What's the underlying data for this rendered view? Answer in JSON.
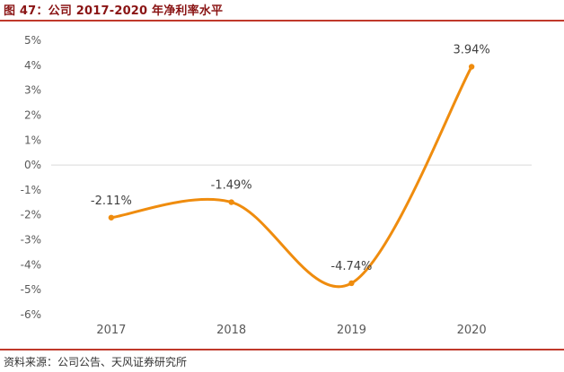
{
  "figure": {
    "title": "图 47：公司 2017-2020 年净利率水平",
    "source": "资料来源：公司公告、天风证券研究所"
  },
  "colors": {
    "accent_rule": "#c0392b",
    "title_text": "#8a1414",
    "series_line": "#ef8c0e",
    "axis_text": "#595959",
    "zero_line": "#d9d9d9"
  },
  "chart_data": {
    "type": "line",
    "categories": [
      "2017",
      "2018",
      "2019",
      "2020"
    ],
    "series": [
      {
        "values": [
          -2.11,
          -1.49,
          -4.74,
          3.94
        ]
      }
    ],
    "data_labels": [
      "-2.11%",
      "-1.49%",
      "-4.74%",
      "3.94%"
    ],
    "y_ticks": [
      "5%",
      "4%",
      "3%",
      "2%",
      "1%",
      "0%",
      "-1%",
      "-2%",
      "-3%",
      "-4%",
      "-5%",
      "-6%"
    ],
    "y_tick_values": [
      5,
      4,
      3,
      2,
      1,
      0,
      -1,
      -2,
      -3,
      -4,
      -5,
      -6
    ],
    "ylim": [
      -6,
      5
    ],
    "smooth": true,
    "grid": false,
    "legend": "none"
  }
}
